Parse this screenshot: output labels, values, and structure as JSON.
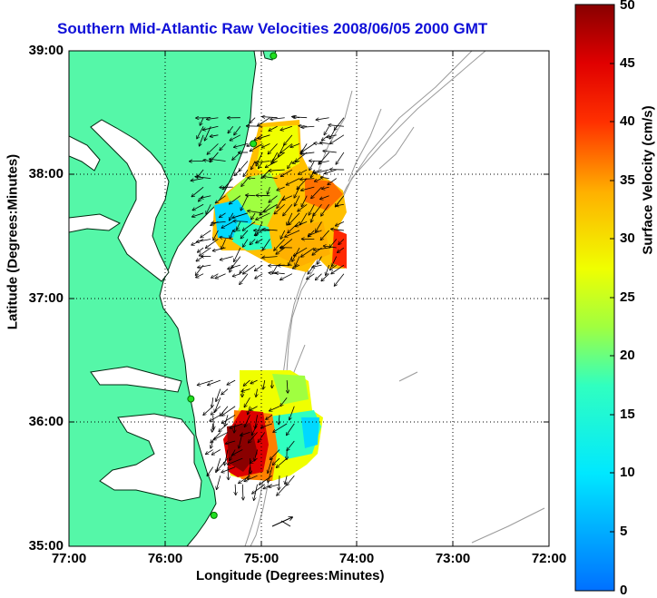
{
  "title": "Southern Mid-Atlantic Raw Velocities 2008/06/05 2000 GMT",
  "x_axis": {
    "label": "Longitude (Degrees:Minutes)",
    "ticks": [
      "77:00",
      "76:00",
      "75:00",
      "74:00",
      "73:00",
      "72:00"
    ]
  },
  "y_axis": {
    "label": "Latitude (Degrees:Minutes)",
    "ticks": [
      "39:00",
      "38:00",
      "37:00",
      "36:00",
      "35:00"
    ]
  },
  "colorbar": {
    "label": "Surface Velocity (cm/s)",
    "ticks": [
      "50",
      "45",
      "40",
      "35",
      "30",
      "25",
      "20",
      "15",
      "10",
      "5",
      "0"
    ],
    "min": 0,
    "max": 50
  },
  "colors": {
    "land": "#55f7a8",
    "title": "#1010d8",
    "coast": "#002a10",
    "bathymetry": "#9a9a9a",
    "station": "#20e020"
  },
  "chart_data": {
    "type": "velocity_map",
    "lon_range": [
      -77,
      -72
    ],
    "lat_range": [
      35,
      39
    ],
    "units": "cm/s",
    "regions": [
      {
        "name": "northern",
        "lat_range": [
          37.2,
          38.5
        ],
        "lon_range": [
          -75.6,
          -74.1
        ],
        "speed_range": [
          8,
          40
        ]
      },
      {
        "name": "southern",
        "lat_range": [
          35.5,
          36.4
        ],
        "lon_range": [
          -75.5,
          -74.6
        ],
        "speed_range": [
          15,
          50
        ]
      }
    ],
    "stations": [
      {
        "lon": -74.87,
        "lat": 38.96
      },
      {
        "lon": -75.08,
        "lat": 38.25
      },
      {
        "lon": -75.73,
        "lat": 36.19
      },
      {
        "lon": -75.49,
        "lat": 35.25
      }
    ]
  }
}
